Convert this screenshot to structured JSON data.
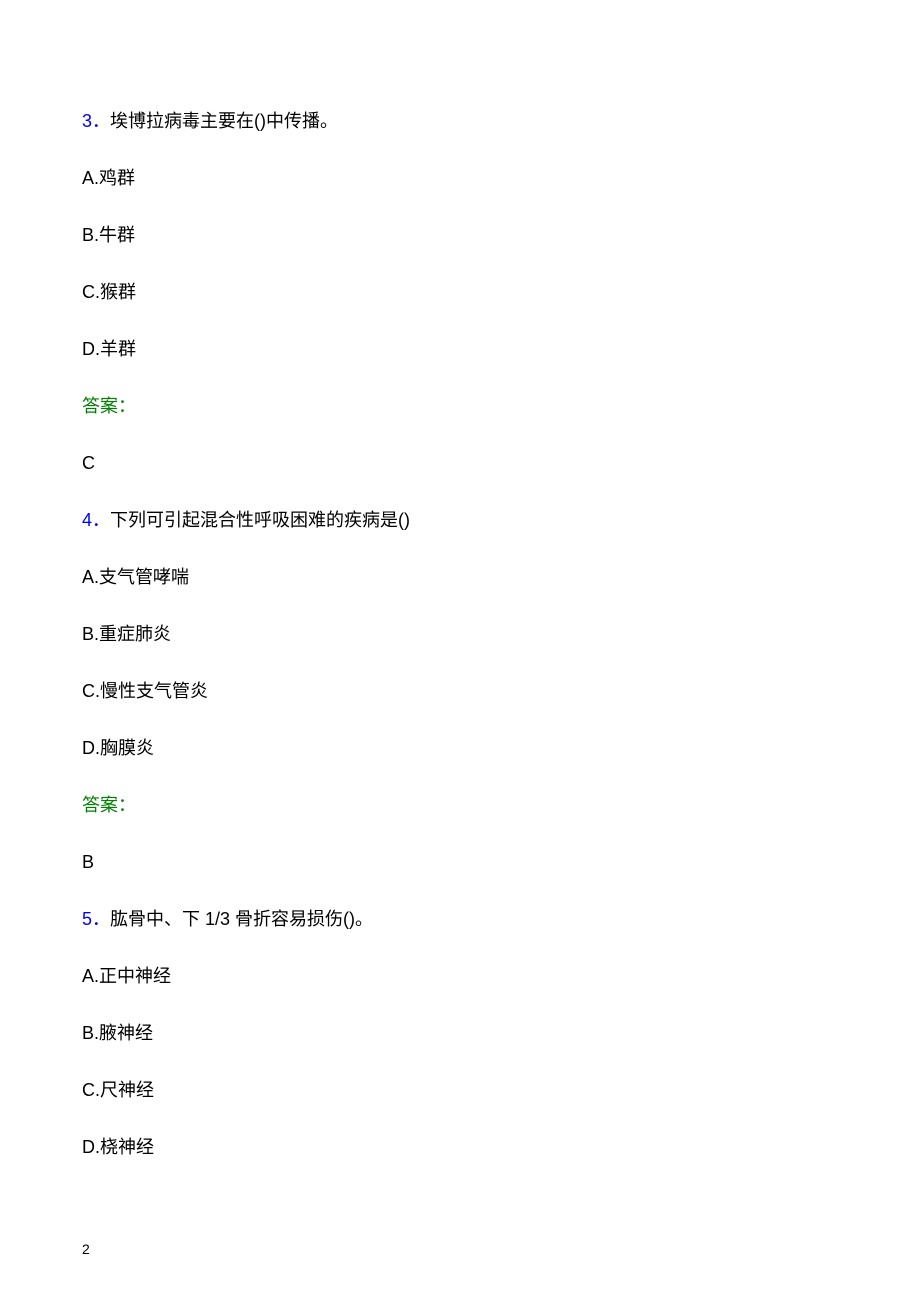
{
  "colors": {
    "question_number": "#0000ff",
    "question_text": "#000000",
    "option_text": "#000000",
    "answer_label": "#008000",
    "answer_value": "#000000",
    "background": "#ffffff"
  },
  "typography": {
    "body_fontsize": 18,
    "page_number_fontsize": 14,
    "font_family": "Microsoft YaHei"
  },
  "questions": [
    {
      "number": "3",
      "separator": "．",
      "text": "埃博拉病毒主要在()中传播。",
      "options": [
        "A.鸡群",
        "B.牛群",
        "C.猴群",
        "D.羊群"
      ],
      "answer_label": "答案：",
      "answer": "C"
    },
    {
      "number": "4",
      "separator": "．",
      "text": "下列可引起混合性呼吸困难的疾病是()",
      "options": [
        "A.支气管哮喘",
        "B.重症肺炎",
        "C.慢性支气管炎",
        "D.胸膜炎"
      ],
      "answer_label": "答案：",
      "answer": "B"
    },
    {
      "number": "5",
      "separator": "．",
      "text": "肱骨中、下 1/3 骨折容易损伤()。",
      "options": [
        "A.正中神经",
        "B.腋神经",
        "C.尺神经",
        "D.桡神经"
      ],
      "answer_label": null,
      "answer": null
    }
  ],
  "page_number": "2"
}
